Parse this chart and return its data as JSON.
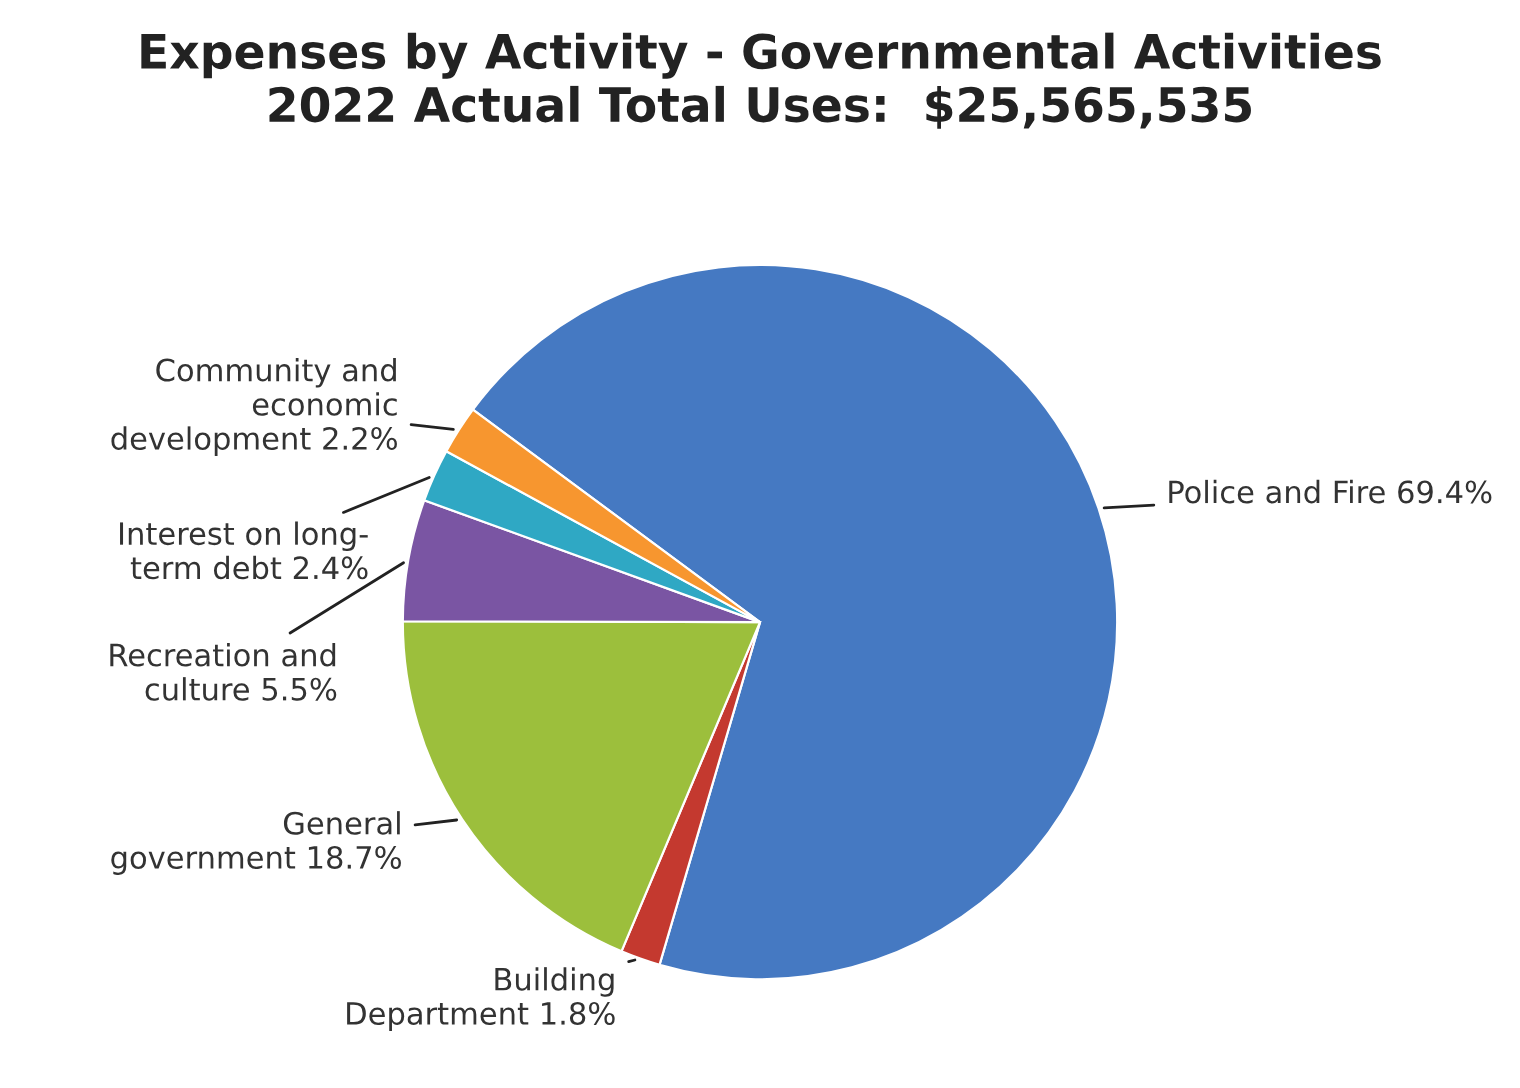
{
  "chart_data": {
    "type": "pie",
    "title": "Expenses by Activity - Governmental Activities\n2022 Actual Total Uses:  $25,565,535",
    "categories": [
      "Police and Fire",
      "Building\nDepartment",
      "General\ngovernment",
      "Recreation and\nculture",
      "Interest on long-\nterm debt",
      "Community and\neconomic\ndevelopment"
    ],
    "values": [
      69.4,
      1.8,
      18.7,
      5.5,
      2.4,
      2.2
    ],
    "value_labels": [
      "69.4%",
      "1.8%",
      "18.7%",
      "5.5%",
      "2.4%",
      "2.2%"
    ],
    "colors": [
      "#4579c2",
      "#c4392f",
      "#9cbf3c",
      "#7a55a3",
      "#2fa8c4",
      "#f7962f"
    ]
  }
}
